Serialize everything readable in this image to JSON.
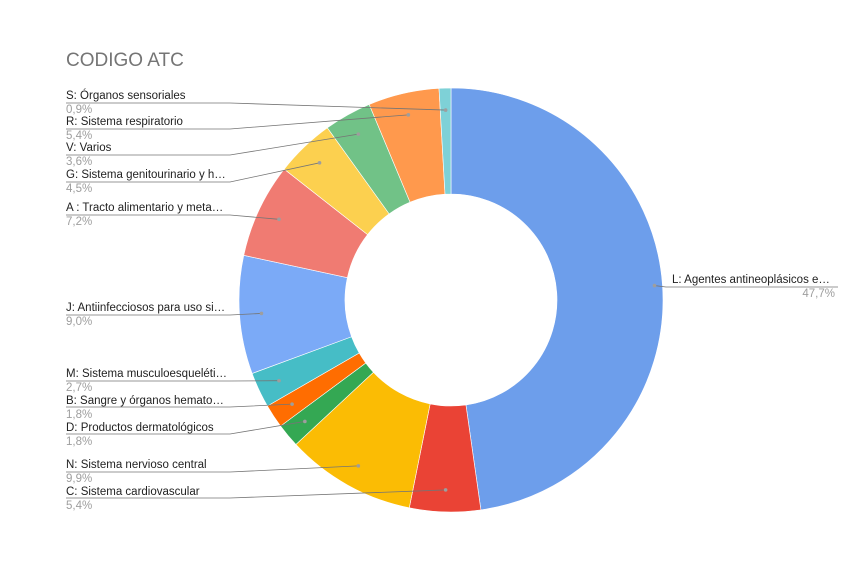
{
  "chart_data": {
    "type": "pie",
    "donut": true,
    "title": "CODIGO ATC",
    "legend": "callout-labels",
    "slices": [
      {
        "name": "L: Agentes antineoplásicos e…",
        "label": "47,7%",
        "value": 47.7,
        "color": "#6d9eeb"
      },
      {
        "name": "C: Sistema cardiovascular",
        "label": "5,4%",
        "value": 5.4,
        "color": "#ea4335"
      },
      {
        "name": "N: Sistema nervioso central",
        "label": "9,9%",
        "value": 9.9,
        "color": "#fbbc04"
      },
      {
        "name": "D: Productos dermatológicos",
        "label": "1,8%",
        "value": 1.8,
        "color": "#34a853"
      },
      {
        "name": "B: Sangre y órganos hemato…",
        "label": "1,8%",
        "value": 1.8,
        "color": "#ff6d01"
      },
      {
        "name": "M: Sistema musculoesqueléti…",
        "label": "2,7%",
        "value": 2.7,
        "color": "#46bdc6"
      },
      {
        "name": "J: Antiinfecciosos para uso si…",
        "label": "9,0%",
        "value": 9.0,
        "color": "#7baaf7"
      },
      {
        "name": "A : Tracto alimentario y meta…",
        "label": "7,2%",
        "value": 7.2,
        "color": "#f07b72"
      },
      {
        "name": "G: Sistema genitourinario y h…",
        "label": "4,5%",
        "value": 4.5,
        "color": "#fcd04f"
      },
      {
        "name": "V: Varios",
        "label": "3,6%",
        "value": 3.6,
        "color": "#71c287"
      },
      {
        "name": "R: Sistema respiratorio",
        "label": "5,4%",
        "value": 5.4,
        "color": "#ff994d"
      },
      {
        "name": "S: Órganos sensoriales",
        "label": "0,9%",
        "value": 0.9,
        "color": "#7ed1d7"
      }
    ]
  }
}
